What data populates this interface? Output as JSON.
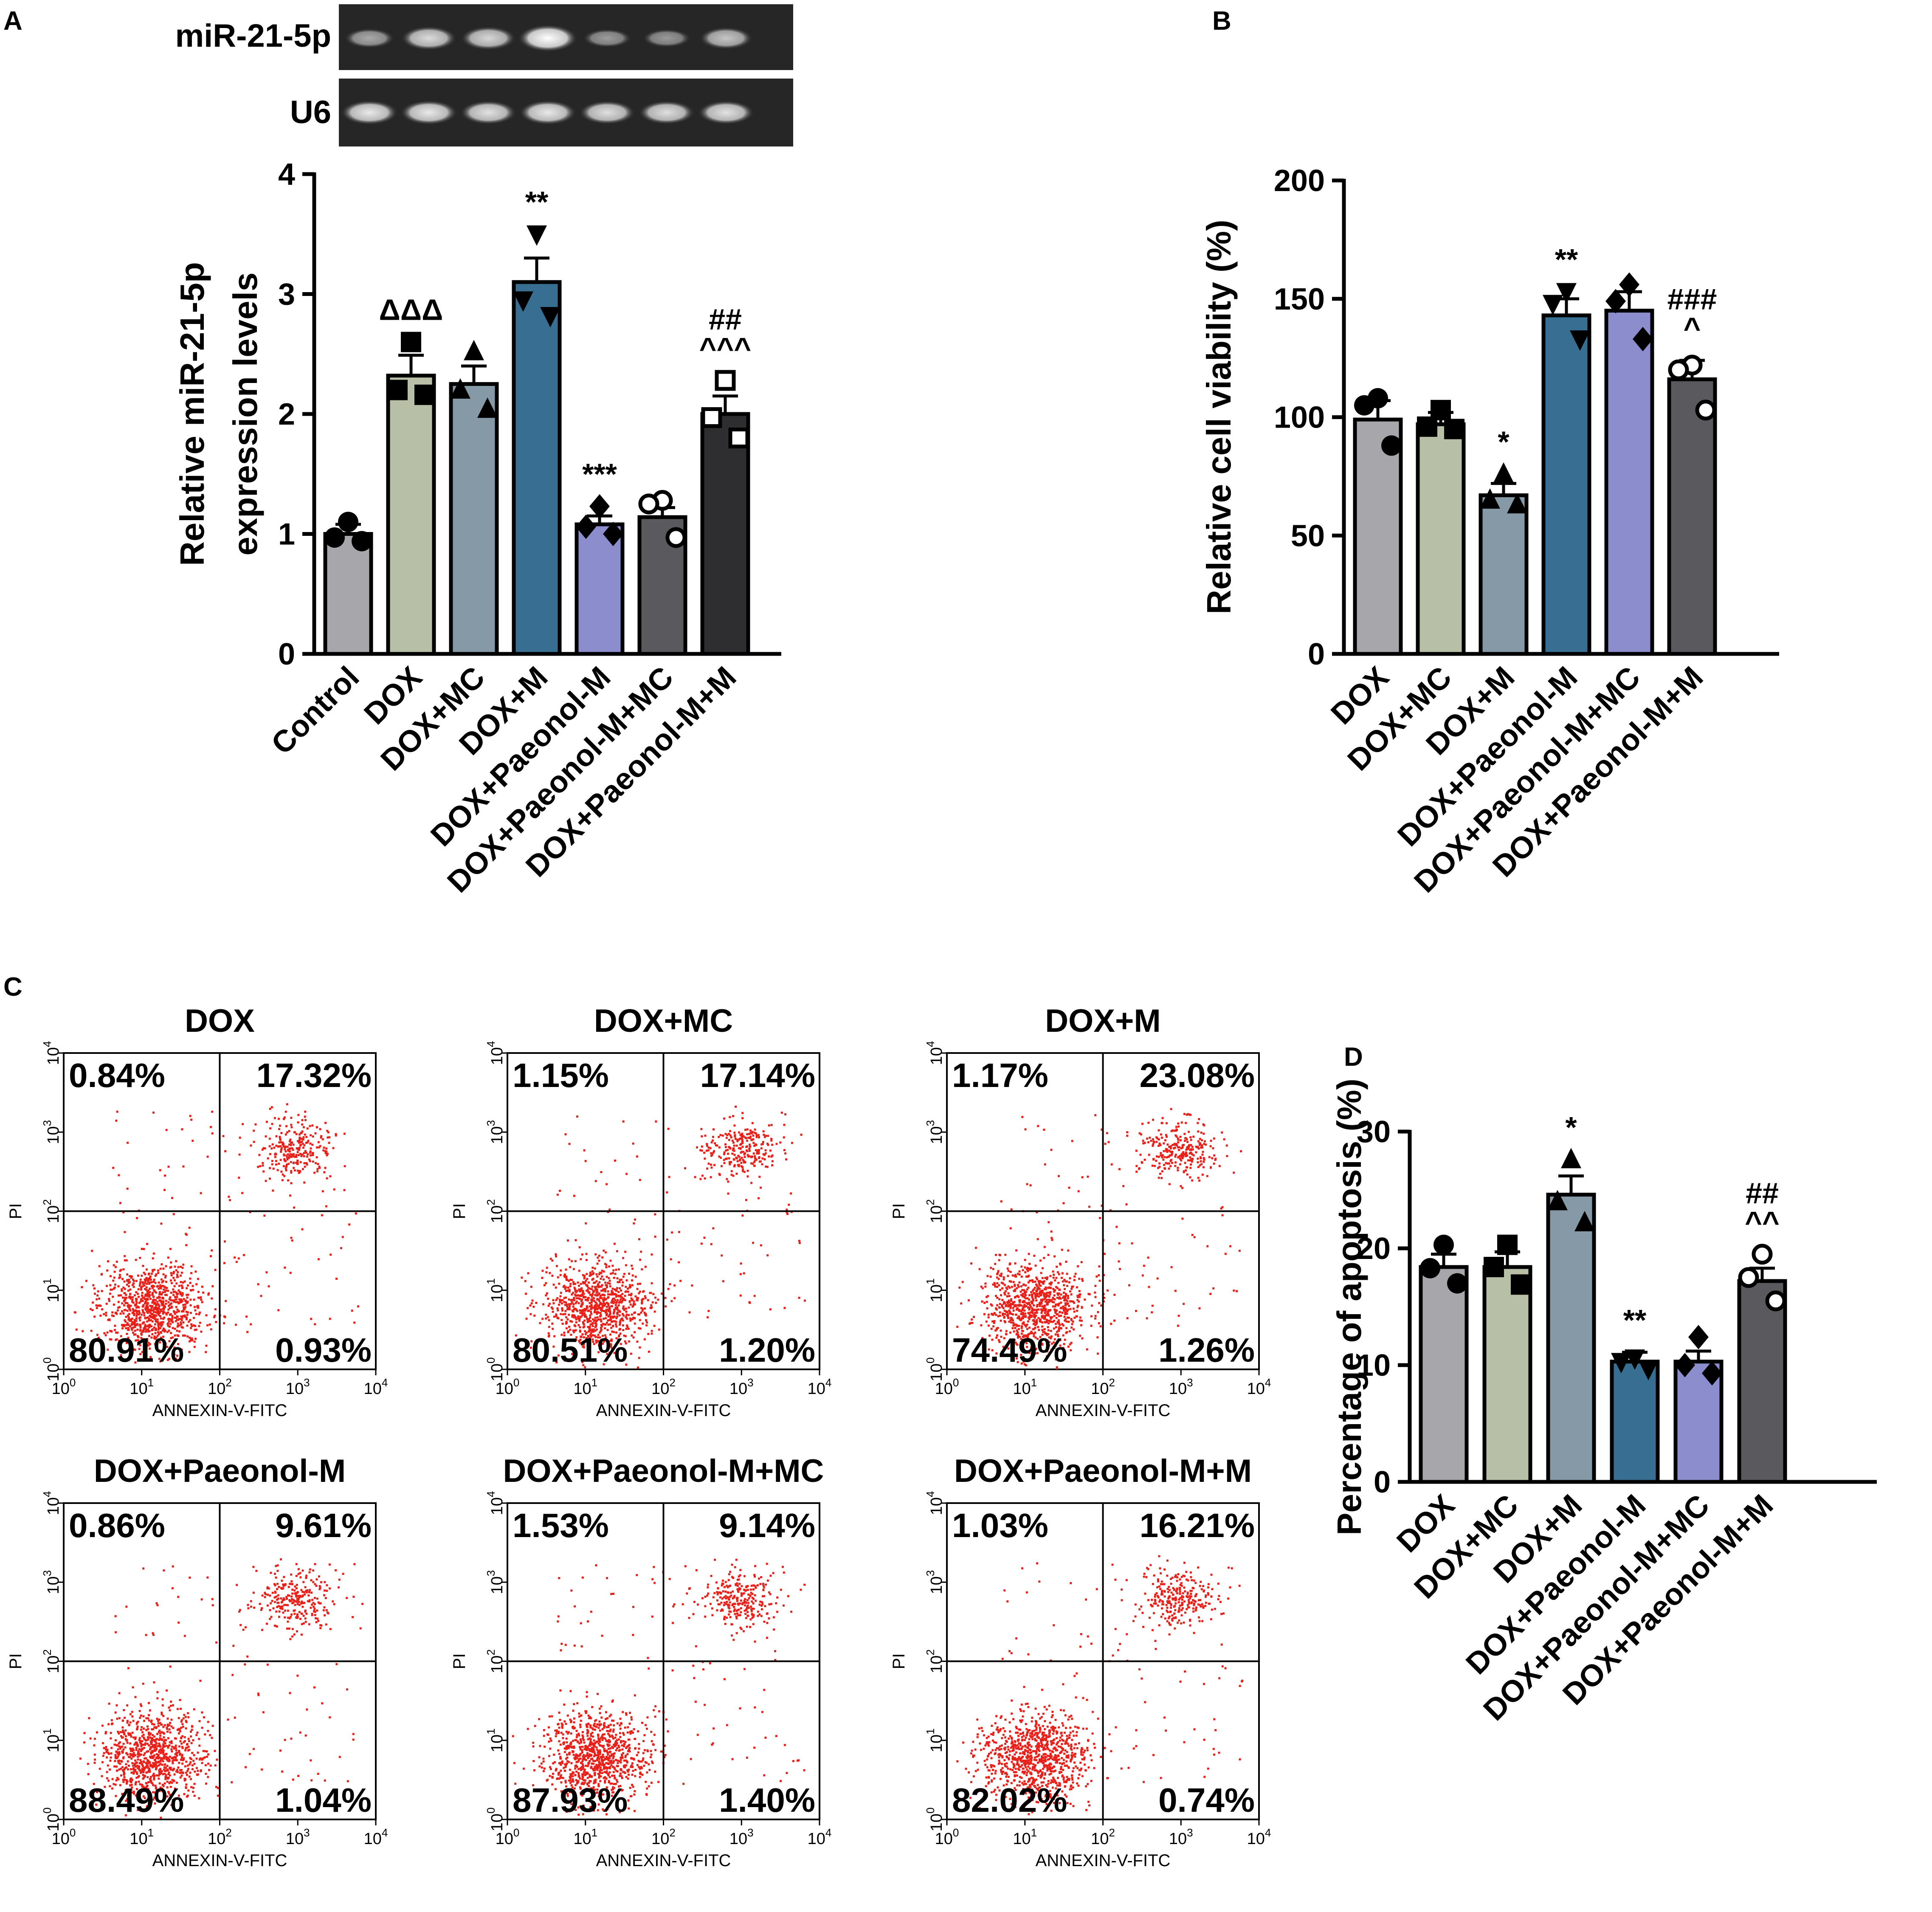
{
  "panel_letters": {
    "A": "A",
    "B": "B",
    "C": "C",
    "D": "D"
  },
  "gel": {
    "labels": [
      "miR-21-5p",
      "U6"
    ],
    "band_counts": [
      7,
      7
    ],
    "relative_intensity": [
      [
        0.4,
        0.75,
        0.72,
        1.0,
        0.3,
        0.28,
        0.6
      ],
      [
        0.85,
        0.85,
        0.8,
        0.85,
        0.78,
        0.78,
        0.8
      ]
    ]
  },
  "colors": {
    "gray": "#a7a6ab",
    "sage": "#b7bfa7",
    "slate": "#8699a6",
    "teal": "#386e92",
    "periwinkle": "#8b8dcc",
    "darkgray": "#5a5a5e",
    "charcoal": "#2e2e30",
    "dot": "#e8201a"
  },
  "chart_data": [
    {
      "id": "A",
      "type": "bar",
      "ylabel": [
        "Relative miR-21-5p",
        "expression levels"
      ],
      "ylim": [
        0,
        4
      ],
      "yticks": [
        0,
        1,
        2,
        3,
        4
      ],
      "categories": [
        "Control",
        "DOX",
        "DOX+MC",
        "DOX+M",
        "DOX+Paeonol-M",
        "DOX+Paeonol-M+MC",
        "DOX+Paeonol-M+M"
      ],
      "values": [
        1.0,
        2.32,
        2.25,
        3.1,
        1.08,
        1.14,
        2.0
      ],
      "errors": [
        0.08,
        0.17,
        0.15,
        0.2,
        0.07,
        0.08,
        0.15
      ],
      "points": [
        [
          1.1,
          0.97,
          0.94
        ],
        [
          2.6,
          2.2,
          2.16
        ],
        [
          2.52,
          2.2,
          2.04
        ],
        [
          3.5,
          2.95,
          2.82
        ],
        [
          1.23,
          1.06,
          1.0
        ],
        [
          1.28,
          1.25,
          0.97
        ],
        [
          2.28,
          1.97,
          1.8
        ]
      ],
      "markers": [
        "circle",
        "square",
        "triangle",
        "triangle-down",
        "diamond",
        "circle-open",
        "square-open"
      ],
      "fill_keys": [
        "gray",
        "sage",
        "slate",
        "teal",
        "periwinkle",
        "darkgray",
        "charcoal"
      ],
      "annotations": [
        [],
        [
          "ΔΔΔ"
        ],
        [],
        [
          "**"
        ],
        [
          "***"
        ],
        [],
        [
          "##",
          "^^^"
        ]
      ]
    },
    {
      "id": "B",
      "type": "bar",
      "ylabel": [
        "Relative cell viability (%)"
      ],
      "ylim": [
        0,
        200
      ],
      "yticks": [
        0,
        50,
        100,
        150,
        200
      ],
      "categories": [
        "DOX",
        "DOX+MC",
        "DOX+M",
        "DOX+Paeonol-M",
        "DOX+Paeonol-M+MC",
        "DOX+Paeonol-M+M"
      ],
      "values": [
        99,
        97,
        67,
        143,
        145,
        116
      ],
      "errors": [
        8,
        5,
        5,
        7,
        8,
        8
      ],
      "points": [
        [
          108,
          105,
          88
        ],
        [
          103,
          96,
          95
        ],
        [
          76,
          65,
          63
        ],
        [
          153,
          148,
          133
        ],
        [
          156,
          149,
          133
        ],
        [
          122,
          120,
          103
        ]
      ],
      "markers": [
        "circle",
        "square",
        "triangle",
        "triangle-down",
        "diamond",
        "circle-open"
      ],
      "fill_keys": [
        "gray",
        "sage",
        "slate",
        "teal",
        "periwinkle",
        "darkgray"
      ],
      "annotations": [
        [],
        [],
        [
          "*"
        ],
        [
          "**"
        ],
        [],
        [
          "###",
          "^"
        ]
      ]
    },
    {
      "id": "D",
      "type": "bar",
      "ylabel": [
        "Percentage of apoptosis (%)"
      ],
      "ylim": [
        0,
        30
      ],
      "yticks": [
        0,
        10,
        20,
        30
      ],
      "categories": [
        "DOX",
        "DOX+MC",
        "DOX+M",
        "DOX+Paeonol-M",
        "DOX+Paeonol-M+MC",
        "DOX+Paeonol-M+M"
      ],
      "values": [
        18.4,
        18.4,
        24.6,
        10.3,
        10.3,
        17.2
      ],
      "errors": [
        1.1,
        1.3,
        1.6,
        0.8,
        0.9,
        1.1
      ],
      "points": [
        [
          20.3,
          18.3,
          17.0
        ],
        [
          20.3,
          18.4,
          16.9
        ],
        [
          27.6,
          24.0,
          22.2
        ],
        [
          10.6,
          10.3,
          9.7
        ],
        [
          12.4,
          10.0,
          9.3
        ],
        [
          19.5,
          17.5,
          15.5
        ]
      ],
      "markers": [
        "circle",
        "square",
        "triangle",
        "triangle-down",
        "diamond",
        "circle-open"
      ],
      "fill_keys": [
        "gray",
        "sage",
        "slate",
        "teal",
        "periwinkle",
        "darkgray"
      ],
      "annotations": [
        [],
        [],
        [
          "*"
        ],
        [
          "**"
        ],
        [],
        [
          "##",
          "^^"
        ]
      ]
    },
    {
      "id": "C",
      "type": "scatter",
      "xlabel": "ANNEXIN-V-FITC",
      "ylabel": "PI",
      "tick_exponents": [
        "0",
        "1",
        "2",
        "3",
        "4"
      ],
      "tick_base": "10",
      "plots": [
        {
          "title": "DOX",
          "q_ul": "0.84%",
          "q_ur": "17.32%",
          "q_ll": "80.91%",
          "q_lr": "0.93%"
        },
        {
          "title": "DOX+MC",
          "q_ul": "1.15%",
          "q_ur": "17.14%",
          "q_ll": "80.51%",
          "q_lr": "1.20%"
        },
        {
          "title": "DOX+M",
          "q_ul": "1.17%",
          "q_ur": "23.08%",
          "q_ll": "74.49%",
          "q_lr": "1.26%"
        },
        {
          "title": "DOX+Paeonol-M",
          "q_ul": "0.86%",
          "q_ur": "9.61%",
          "q_ll": "88.49%",
          "q_lr": "1.04%"
        },
        {
          "title": "DOX+Paeonol-M+MC",
          "q_ul": "1.53%",
          "q_ur": "9.14%",
          "q_ll": "87.93%",
          "q_lr": "1.40%"
        },
        {
          "title": "DOX+Paeonol-M+M",
          "q_ul": "1.03%",
          "q_ur": "16.21%",
          "q_ll": "82.02%",
          "q_lr": "0.74%"
        }
      ]
    }
  ]
}
